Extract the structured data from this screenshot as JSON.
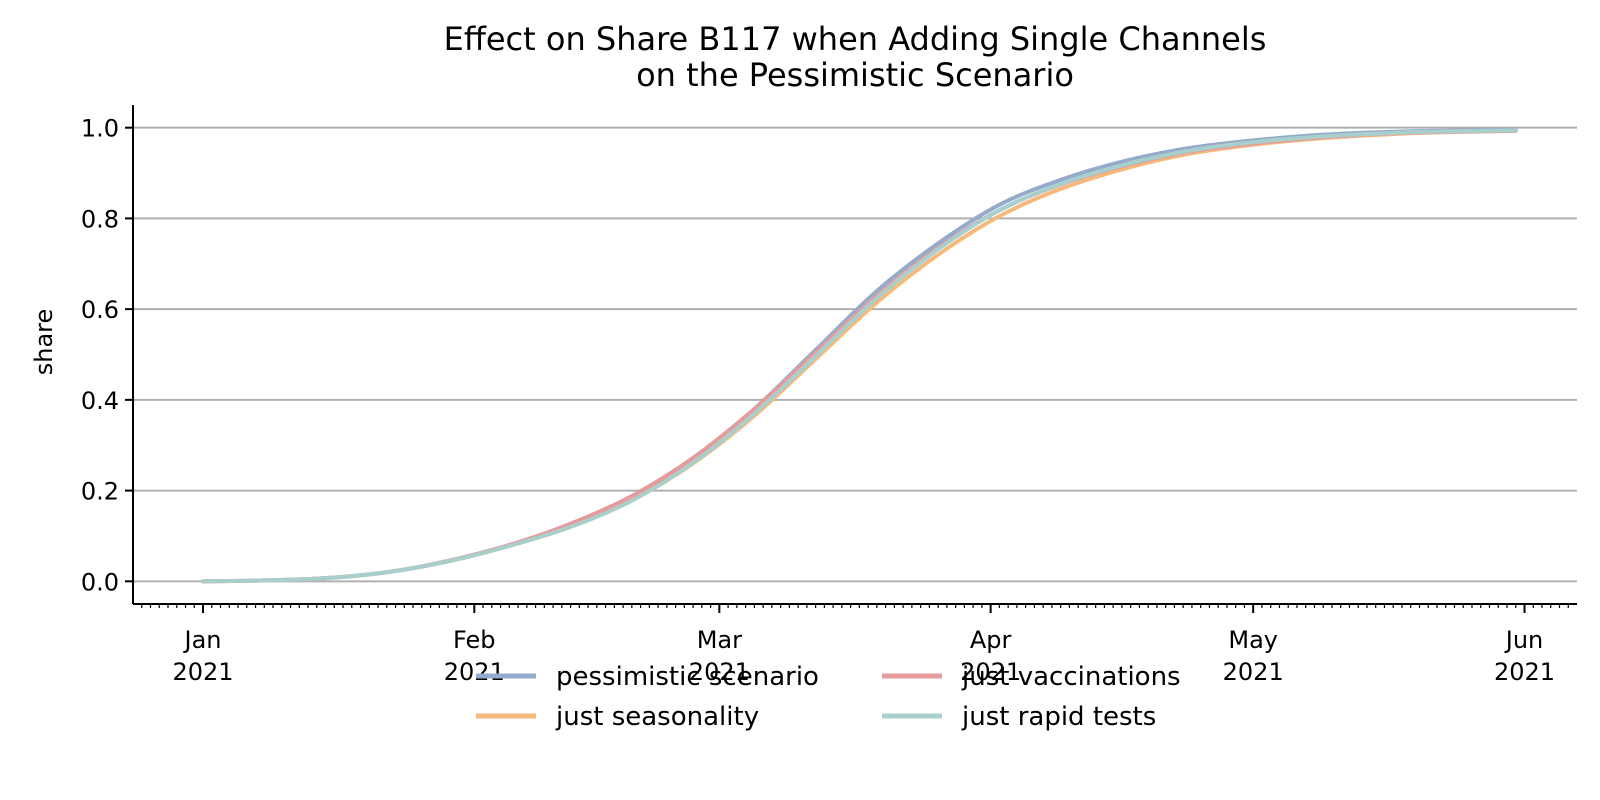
{
  "chart_data": {
    "type": "line",
    "title_lines": [
      "Effect on Share B117 when Adding Single Channels",
      "on the Pessimistic Scenario"
    ],
    "ylabel": "share",
    "xlabel": "",
    "ylim": [
      -0.05,
      1.05
    ],
    "xlim": [
      "2020-12-24",
      "2021-06-07"
    ],
    "grid": "horizontal",
    "legend_position": "bottom-center",
    "y_ticks": [
      {
        "value": 0.0,
        "label": "0.0"
      },
      {
        "value": 0.2,
        "label": "0.2"
      },
      {
        "value": 0.4,
        "label": "0.4"
      },
      {
        "value": 0.6,
        "label": "0.6"
      },
      {
        "value": 0.8,
        "label": "0.8"
      },
      {
        "value": 1.0,
        "label": "1.0"
      }
    ],
    "x_ticks": [
      {
        "date": "2021-01-01",
        "month": "Jan",
        "year": "2021"
      },
      {
        "date": "2021-02-01",
        "month": "Feb",
        "year": "2021"
      },
      {
        "date": "2021-03-01",
        "month": "Mar",
        "year": "2021"
      },
      {
        "date": "2021-04-01",
        "month": "Apr",
        "year": "2021"
      },
      {
        "date": "2021-05-01",
        "month": "May",
        "year": "2021"
      },
      {
        "date": "2021-06-01",
        "month": "Jun",
        "year": "2021"
      }
    ],
    "x": [
      "2021-01-01",
      "2021-01-08",
      "2021-01-15",
      "2021-01-22",
      "2021-01-29",
      "2021-02-05",
      "2021-02-12",
      "2021-02-19",
      "2021-02-26",
      "2021-03-05",
      "2021-03-12",
      "2021-03-19",
      "2021-03-26",
      "2021-04-02",
      "2021-04-09",
      "2021-04-16",
      "2021-04-23",
      "2021-04-30",
      "2021-05-07",
      "2021-05-14",
      "2021-05-21",
      "2021-05-31"
    ],
    "series": [
      {
        "name": "pessimistic scenario",
        "color": "#94abcb",
        "values": [
          0.0,
          0.002,
          0.007,
          0.02,
          0.045,
          0.08,
          0.125,
          0.185,
          0.27,
          0.38,
          0.51,
          0.64,
          0.745,
          0.83,
          0.885,
          0.925,
          0.953,
          0.97,
          0.982,
          0.989,
          0.993,
          0.995
        ]
      },
      {
        "name": "just seasonality",
        "color": "#f5b97c",
        "values": [
          0.0,
          0.002,
          0.007,
          0.02,
          0.044,
          0.078,
          0.12,
          0.178,
          0.26,
          0.365,
          0.49,
          0.615,
          0.72,
          0.805,
          0.865,
          0.908,
          0.94,
          0.96,
          0.974,
          0.983,
          0.989,
          0.993
        ]
      },
      {
        "name": "just vaccinations",
        "color": "#e79a9b",
        "values": [
          0.0,
          0.002,
          0.007,
          0.02,
          0.045,
          0.08,
          0.127,
          0.188,
          0.272,
          0.38,
          0.505,
          0.63,
          0.735,
          0.818,
          0.875,
          0.915,
          0.945,
          0.963,
          0.976,
          0.985,
          0.99,
          0.993
        ]
      },
      {
        "name": "just rapid tests",
        "color": "#a8cfcb",
        "values": [
          0.0,
          0.002,
          0.007,
          0.02,
          0.044,
          0.078,
          0.12,
          0.178,
          0.262,
          0.37,
          0.497,
          0.625,
          0.732,
          0.818,
          0.876,
          0.917,
          0.947,
          0.966,
          0.978,
          0.986,
          0.991,
          0.994
        ]
      }
    ],
    "legend_layout": [
      [
        "pessimistic scenario",
        "just vaccinations"
      ],
      [
        "just seasonality",
        "just rapid tests"
      ]
    ]
  }
}
